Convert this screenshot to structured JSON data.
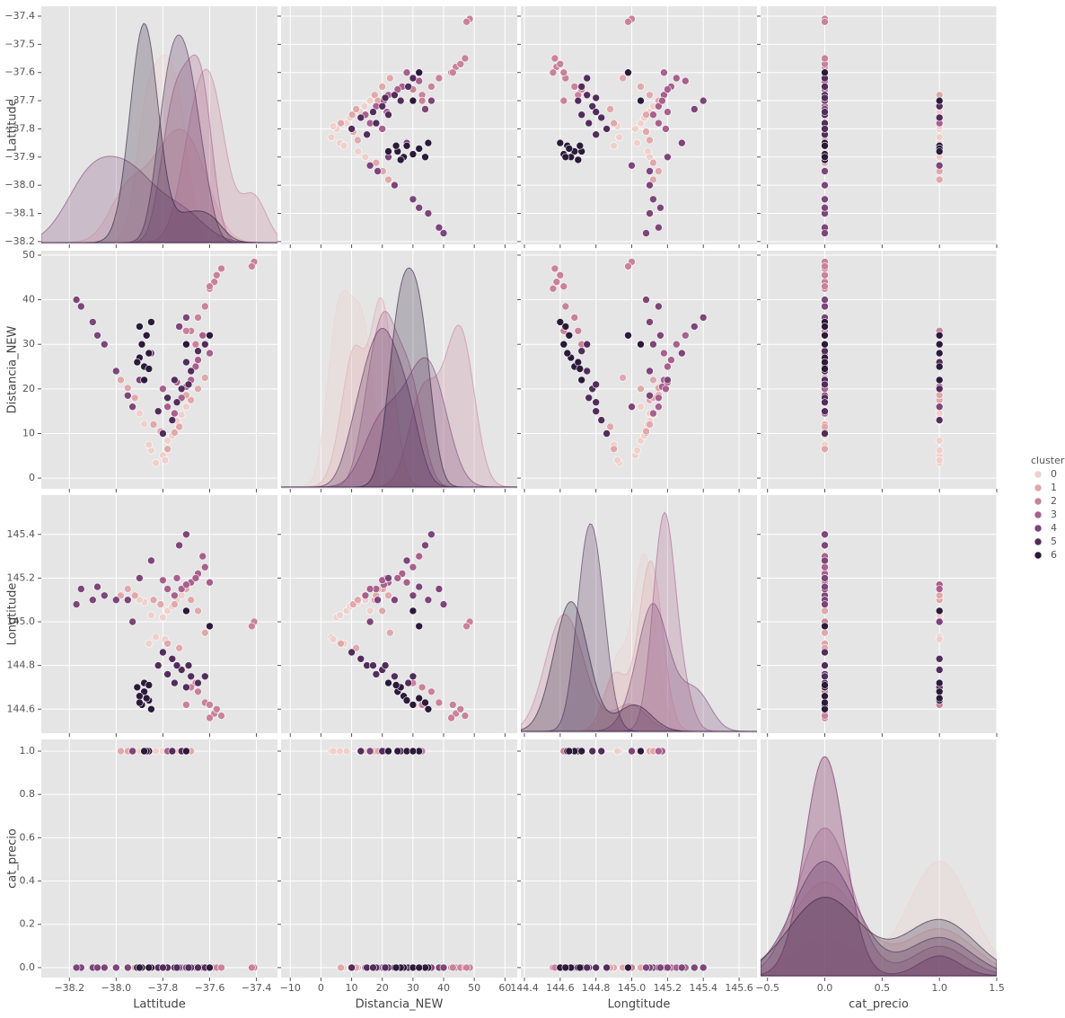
{
  "chart_data": {
    "type": "pairplot",
    "legend_title": "cluster",
    "variables": [
      {
        "name": "Lattitude",
        "xlim": [
          -38.32,
          -37.31
        ],
        "ylim": [
          -38.21,
          -37.365
        ],
        "xticks": [
          {
            "value": -38.2,
            "label": "−38.2"
          },
          {
            "value": -38.0,
            "label": "−38.0"
          },
          {
            "value": -37.8,
            "label": "−37.8"
          },
          {
            "value": -37.6,
            "label": "−37.6"
          },
          {
            "value": -37.4,
            "label": "−37.4"
          }
        ],
        "yticks": [
          {
            "value": -38.2,
            "label": "−38.2"
          },
          {
            "value": -38.1,
            "label": "−38.1"
          },
          {
            "value": -38.0,
            "label": "−38.0"
          },
          {
            "value": -37.9,
            "label": "−37.9"
          },
          {
            "value": -37.8,
            "label": "−37.8"
          },
          {
            "value": -37.7,
            "label": "−37.7"
          },
          {
            "value": -37.6,
            "label": "−37.6"
          },
          {
            "value": -37.5,
            "label": "−37.5"
          },
          {
            "value": -37.4,
            "label": "−37.4"
          }
        ]
      },
      {
        "name": "Distancia_NEW",
        "xlim": [
          -13,
          64
        ],
        "ylim": [
          -2.4,
          51
        ],
        "xticks": [
          {
            "value": -10,
            "label": "−10"
          },
          0,
          10,
          20,
          30,
          40,
          50,
          60
        ],
        "yticks": [
          0,
          10,
          20,
          30,
          40,
          50
        ]
      },
      {
        "name": "Longtitude",
        "xlim": [
          144.38,
          145.7
        ],
        "ylim": [
          144.49,
          145.58
        ],
        "xticks": [
          144.4,
          144.6,
          144.8,
          {
            "value": 145,
            "label": "145.0"
          },
          145.2,
          145.4,
          145.6
        ],
        "yticks": [
          144.6,
          144.8,
          {
            "value": 145,
            "label": "145.0"
          },
          145.2,
          145.4
        ]
      },
      {
        "name": "cat_precio",
        "xlim": [
          -0.56,
          1.5
        ],
        "ylim": [
          -0.046,
          1.054
        ],
        "xticks": [
          {
            "value": -0.5,
            "label": "−0.5"
          },
          {
            "value": 0,
            "label": "0.0"
          },
          0.5,
          {
            "value": 1,
            "label": "1.0"
          },
          1.5
        ],
        "yticks": [
          {
            "value": 0,
            "label": "0.0"
          },
          0.2,
          0.4,
          0.6,
          0.8,
          {
            "value": 1,
            "label": "1.0"
          }
        ]
      }
    ],
    "series": [
      {
        "name": "0",
        "color": "#efd0cb",
        "points": [
          [
            -37.8,
            5.1,
            145.02,
            1
          ],
          [
            -37.78,
            8.4,
            145.05,
            1
          ],
          [
            -37.85,
            6.2,
            145.03,
            1
          ],
          [
            -37.76,
            9.5,
            145.07,
            0
          ],
          [
            -37.83,
            3.4,
            144.93,
            1
          ],
          [
            -37.74,
            12.8,
            145.1,
            1
          ],
          [
            -37.88,
            12.1,
            145.09,
            0
          ],
          [
            -37.79,
            4.0,
            144.92,
            1
          ],
          [
            -37.72,
            14.2,
            145.12,
            1
          ],
          [
            -37.86,
            7.5,
            144.9,
            0
          ],
          [
            -37.7,
            16.0,
            145.05,
            1
          ],
          [
            -37.9,
            14.5,
            145.1,
            1
          ]
        ]
      },
      {
        "name": "1",
        "color": "#e0a8ab",
        "points": [
          [
            -37.75,
            10.2,
            145.08,
            0
          ],
          [
            -37.68,
            17.5,
            145.1,
            1
          ],
          [
            -37.92,
            18.0,
            145.12,
            0
          ],
          [
            -37.81,
            10.5,
            145.08,
            0
          ],
          [
            -37.65,
            20.0,
            145.05,
            0
          ],
          [
            -37.95,
            20.2,
            145.15,
            1
          ],
          [
            -37.78,
            6.5,
            144.9,
            0
          ],
          [
            -37.7,
            18.6,
            145.15,
            1
          ],
          [
            -37.84,
            12.0,
            145.1,
            0
          ],
          [
            -37.62,
            22.5,
            144.95,
            0
          ],
          [
            -37.98,
            22.0,
            145.12,
            1
          ],
          [
            -37.73,
            11.5,
            144.88,
            0
          ]
        ]
      },
      {
        "name": "2",
        "color": "#c9829a",
        "points": [
          [
            -37.58,
            44.0,
            144.58,
            0
          ],
          [
            -37.6,
            42.5,
            144.56,
            0
          ],
          [
            -37.57,
            45.5,
            144.6,
            0
          ],
          [
            -37.55,
            47.0,
            144.57,
            0
          ],
          [
            -37.62,
            38.5,
            144.63,
            0
          ],
          [
            -37.65,
            36.0,
            144.68,
            0
          ],
          [
            -37.41,
            48.5,
            145.0,
            0
          ],
          [
            -37.42,
            47.5,
            144.98,
            0
          ],
          [
            -37.66,
            30.0,
            144.72,
            0
          ],
          [
            -37.68,
            33.0,
            144.7,
            0
          ],
          [
            -37.7,
            33.0,
            144.62,
            1
          ],
          [
            -37.6,
            43.0,
            144.62,
            0
          ]
        ]
      },
      {
        "name": "3",
        "color": "#a8608d",
        "points": [
          [
            -37.72,
            18.0,
            145.15,
            0
          ],
          [
            -37.68,
            22.0,
            145.18,
            0
          ],
          [
            -37.65,
            26.5,
            145.22,
            0
          ],
          [
            -37.62,
            30.0,
            145.25,
            0
          ],
          [
            -37.7,
            20.5,
            145.17,
            1
          ],
          [
            -37.75,
            14.5,
            145.12,
            0
          ],
          [
            -37.66,
            25.0,
            145.2,
            0
          ],
          [
            -37.78,
            16.0,
            145.15,
            1
          ],
          [
            -37.6,
            28.0,
            145.18,
            0
          ],
          [
            -37.74,
            21.5,
            145.2,
            0
          ],
          [
            -37.63,
            32.0,
            145.3,
            0
          ],
          [
            -37.8,
            20.0,
            145.19,
            0
          ]
        ]
      },
      {
        "name": "4",
        "color": "#7d4579",
        "points": [
          [
            -38.1,
            35.0,
            145.1,
            0
          ],
          [
            -38.05,
            30.0,
            145.12,
            0
          ],
          [
            -38.15,
            38.5,
            145.15,
            0
          ],
          [
            -38.0,
            24.0,
            145.1,
            0
          ],
          [
            -37.95,
            18.5,
            145.1,
            0
          ],
          [
            -38.17,
            40.0,
            145.08,
            0
          ],
          [
            -37.73,
            34.0,
            145.35,
            0
          ],
          [
            -37.85,
            28.0,
            145.28,
            0
          ],
          [
            -38.08,
            32.0,
            145.16,
            0
          ],
          [
            -37.9,
            22.0,
            145.2,
            0
          ],
          [
            -37.93,
            16.0,
            145.0,
            1
          ],
          [
            -37.7,
            36.0,
            145.4,
            0
          ]
        ]
      },
      {
        "name": "5",
        "color": "#522d5c",
        "points": [
          [
            -37.78,
            18.0,
            144.76,
            0
          ],
          [
            -37.75,
            22.0,
            144.72,
            0
          ],
          [
            -37.7,
            26.0,
            144.7,
            1
          ],
          [
            -37.68,
            24.0,
            144.75,
            0
          ],
          [
            -37.82,
            15.0,
            144.8,
            0
          ],
          [
            -37.72,
            20.0,
            144.78,
            1
          ],
          [
            -37.65,
            28.5,
            144.72,
            0
          ],
          [
            -37.8,
            10.0,
            144.86,
            0
          ],
          [
            -37.62,
            30.0,
            144.75,
            0
          ],
          [
            -37.76,
            13.0,
            144.83,
            1
          ],
          [
            -37.74,
            17.0,
            144.8,
            0
          ],
          [
            -37.69,
            21.0,
            144.8,
            0
          ]
        ]
      },
      {
        "name": "6",
        "color": "#2b1a3a",
        "points": [
          [
            -37.88,
            25.0,
            144.68,
            1
          ],
          [
            -37.9,
            27.0,
            144.66,
            0
          ],
          [
            -37.86,
            28.0,
            144.64,
            1
          ],
          [
            -37.89,
            30.0,
            144.62,
            0
          ],
          [
            -37.87,
            32.0,
            144.65,
            1
          ],
          [
            -37.91,
            26.0,
            144.7,
            0
          ],
          [
            -37.85,
            35.0,
            144.6,
            0
          ],
          [
            -37.88,
            22.0,
            144.72,
            1
          ],
          [
            -37.9,
            34.0,
            144.63,
            0
          ],
          [
            -37.86,
            24.5,
            144.71,
            0
          ],
          [
            -37.7,
            30.0,
            145.05,
            1
          ],
          [
            -37.6,
            32.0,
            144.98,
            0
          ]
        ]
      }
    ],
    "grid": true
  }
}
